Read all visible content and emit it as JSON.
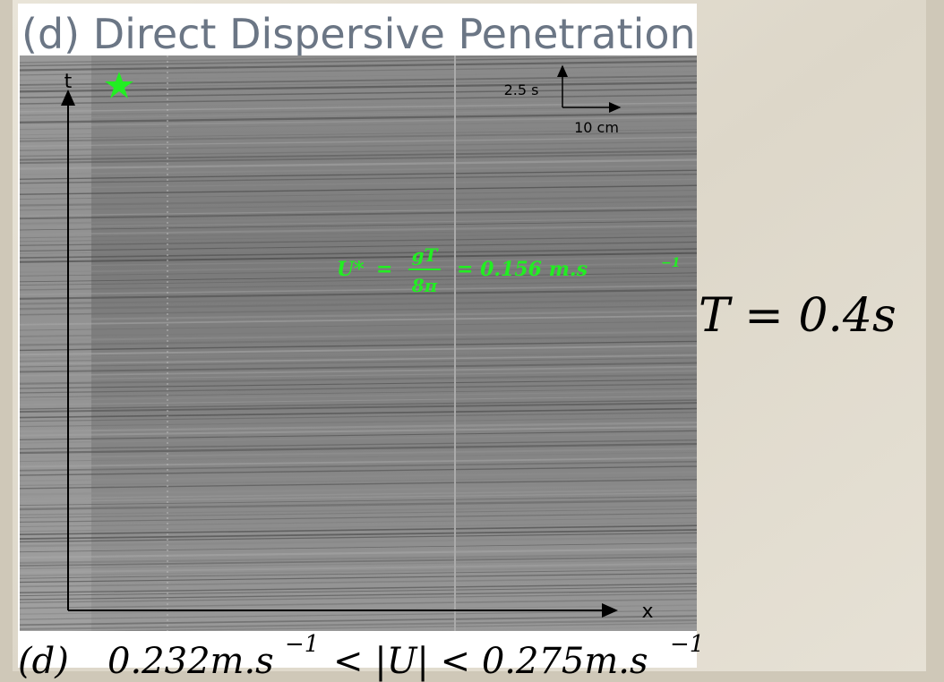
{
  "title": "(d) Direct Dispersive Penetration",
  "figure": {
    "axis_labels": {
      "t": "t",
      "x": "x"
    },
    "scale_bar": {
      "time": "2.5 s",
      "length": "10 cm"
    },
    "formula": {
      "lhs": "U*",
      "numerator": "gT",
      "denominator": "8π",
      "rhs": "= 0.156 m.s",
      "exponent": "−1"
    }
  },
  "side_label": "T = 0.4s",
  "caption": {
    "label": "(d)",
    "lower": "0.232m.s",
    "lower_exp": "−1",
    "middle": "< |U| < 0.275m.s",
    "upper_exp": "−1"
  }
}
